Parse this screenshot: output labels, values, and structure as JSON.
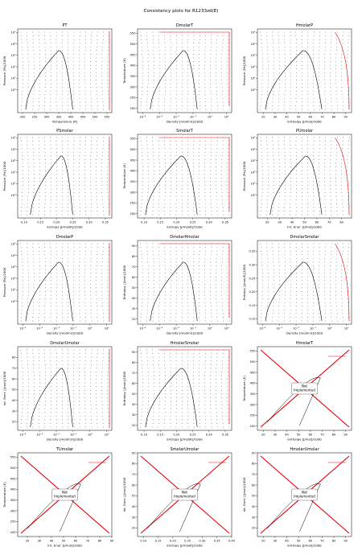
{
  "figure": {
    "title": "Consistency plots for R1233zd(E)"
  },
  "colors": {
    "grid_points": "#000000",
    "saturation_curve": "#000000",
    "boundary_line": "#e8000b",
    "frame": "#000000"
  },
  "chart_data": [
    {
      "id": "PT",
      "type": "scatter",
      "title": "PT",
      "xlabel": "Temperature [K]",
      "ylabel": "Pressure [Pa]/1000",
      "xlim": [
        180,
        570
      ],
      "ylim": [
        0.01,
        200000
      ],
      "xscale": "linear",
      "yscale": "log",
      "xticks": [
        {
          "v": 200,
          "l": "200"
        },
        {
          "v": 250,
          "l": "250"
        },
        {
          "v": 300,
          "l": "300"
        },
        {
          "v": 350,
          "l": "350"
        },
        {
          "v": 400,
          "l": "400"
        },
        {
          "v": 450,
          "l": "450"
        },
        {
          "v": 500,
          "l": "500"
        },
        {
          "v": 550,
          "l": "550"
        }
      ],
      "yticks": [
        {
          "v": 1,
          "l": "10⁰"
        },
        {
          "v": 10,
          "l": "10¹"
        },
        {
          "v": 100,
          "l": "10²"
        },
        {
          "v": 1000,
          "l": "10³"
        },
        {
          "v": 10000,
          "l": "10⁴"
        },
        {
          "v": 100000,
          "l": "10⁵"
        }
      ],
      "implemented": true
    },
    {
      "id": "DmolarT",
      "type": "scatter",
      "title": "DmolarT",
      "xlabel": "Density [mol/m3]/1000",
      "ylabel": "Temperature [K]",
      "xlim": [
        5e-05,
        20
      ],
      "ylim": [
        180,
        570
      ],
      "xscale": "log",
      "yscale": "linear",
      "xticks": [
        {
          "v": 0.0001,
          "l": "10⁻⁴"
        },
        {
          "v": 0.001,
          "l": "10⁻³"
        },
        {
          "v": 0.01,
          "l": "10⁻²"
        },
        {
          "v": 0.1,
          "l": "10⁻¹"
        },
        {
          "v": 1,
          "l": "10⁰"
        },
        {
          "v": 10,
          "l": "10¹"
        }
      ],
      "yticks": [
        {
          "v": 200,
          "l": "200"
        },
        {
          "v": 250,
          "l": "250"
        },
        {
          "v": 300,
          "l": "300"
        },
        {
          "v": 350,
          "l": "350"
        },
        {
          "v": 400,
          "l": "400"
        },
        {
          "v": 450,
          "l": "450"
        },
        {
          "v": 500,
          "l": "500"
        },
        {
          "v": 550,
          "l": "550"
        }
      ],
      "implemented": true
    },
    {
      "id": "HmolarP",
      "type": "scatter",
      "title": "HmolarP",
      "xlabel": "Enthalpy [J/mol]/1000",
      "ylabel": "Pressure [Pa]/1000",
      "xlim": [
        15,
        95
      ],
      "ylim": [
        0.01,
        200000
      ],
      "xscale": "linear",
      "yscale": "log",
      "xticks": [
        {
          "v": 20,
          "l": "20"
        },
        {
          "v": 30,
          "l": "30"
        },
        {
          "v": 40,
          "l": "40"
        },
        {
          "v": 50,
          "l": "50"
        },
        {
          "v": 60,
          "l": "60"
        },
        {
          "v": 70,
          "l": "70"
        },
        {
          "v": 80,
          "l": "80"
        },
        {
          "v": 90,
          "l": "90"
        }
      ],
      "yticks": [
        {
          "v": 1,
          "l": "10⁰"
        },
        {
          "v": 10,
          "l": "10¹"
        },
        {
          "v": 100,
          "l": "10²"
        },
        {
          "v": 1000,
          "l": "10³"
        },
        {
          "v": 10000,
          "l": "10⁴"
        },
        {
          "v": 100000,
          "l": "10⁵"
        }
      ],
      "implemented": true
    },
    {
      "id": "PSmolar",
      "type": "scatter",
      "title": "PSmolar",
      "xlabel": "Entropy [J/mol/K]/1000",
      "ylabel": "Pressure [Pa]/1000",
      "xlim": [
        0.08,
        0.37
      ],
      "ylim": [
        0.01,
        200000
      ],
      "xscale": "linear",
      "yscale": "log",
      "xticks": [
        {
          "v": 0.1,
          "l": "0.10"
        },
        {
          "v": 0.15,
          "l": "0.15"
        },
        {
          "v": 0.2,
          "l": "0.20"
        },
        {
          "v": 0.25,
          "l": "0.25"
        },
        {
          "v": 0.3,
          "l": "0.30"
        },
        {
          "v": 0.35,
          "l": "0.35"
        }
      ],
      "yticks": [
        {
          "v": 1,
          "l": "10⁰"
        },
        {
          "v": 10,
          "l": "10¹"
        },
        {
          "v": 100,
          "l": "10²"
        },
        {
          "v": 1000,
          "l": "10³"
        },
        {
          "v": 10000,
          "l": "10⁴"
        },
        {
          "v": 100000,
          "l": "10⁵"
        }
      ],
      "implemented": true
    },
    {
      "id": "SmolarT",
      "type": "scatter",
      "title": "SmolarT",
      "xlabel": "Entropy [J/mol/K]/1000",
      "ylabel": "Temperature [K]",
      "xlim": [
        0.08,
        0.37
      ],
      "ylim": [
        180,
        570
      ],
      "xscale": "linear",
      "yscale": "linear",
      "xticks": [
        {
          "v": 0.1,
          "l": "0.10"
        },
        {
          "v": 0.15,
          "l": "0.15"
        },
        {
          "v": 0.2,
          "l": "0.20"
        },
        {
          "v": 0.25,
          "l": "0.25"
        },
        {
          "v": 0.3,
          "l": "0.30"
        },
        {
          "v": 0.35,
          "l": "0.35"
        }
      ],
      "yticks": [
        {
          "v": 200,
          "l": "200"
        },
        {
          "v": 250,
          "l": "250"
        },
        {
          "v": 300,
          "l": "300"
        },
        {
          "v": 350,
          "l": "350"
        },
        {
          "v": 400,
          "l": "400"
        },
        {
          "v": 450,
          "l": "450"
        },
        {
          "v": 500,
          "l": "500"
        },
        {
          "v": 550,
          "l": "550"
        }
      ],
      "implemented": true
    },
    {
      "id": "PUmolar",
      "type": "scatter",
      "title": "PUmolar",
      "xlabel": "Int. Ener. [J/mol]/1000",
      "ylabel": "Pressure [Pa]/1000",
      "xlim": [
        12,
        88
      ],
      "ylim": [
        0.01,
        200000
      ],
      "xscale": "linear",
      "yscale": "log",
      "xticks": [
        {
          "v": 20,
          "l": "20"
        },
        {
          "v": 30,
          "l": "30"
        },
        {
          "v": 40,
          "l": "40"
        },
        {
          "v": 50,
          "l": "50"
        },
        {
          "v": 60,
          "l": "60"
        },
        {
          "v": 70,
          "l": "70"
        },
        {
          "v": 80,
          "l": "80"
        }
      ],
      "yticks": [
        {
          "v": 1,
          "l": "10⁰"
        },
        {
          "v": 10,
          "l": "10¹"
        },
        {
          "v": 100,
          "l": "10²"
        },
        {
          "v": 1000,
          "l": "10³"
        },
        {
          "v": 10000,
          "l": "10⁴"
        },
        {
          "v": 100000,
          "l": "10⁵"
        }
      ],
      "implemented": true
    },
    {
      "id": "DmolarP",
      "type": "scatter",
      "title": "DmolarP",
      "xlabel": "Density [mol/m3]/1000",
      "ylabel": "Pressure [Pa]/1000",
      "xlim": [
        5e-05,
        20
      ],
      "ylim": [
        0.01,
        200000
      ],
      "xscale": "log",
      "yscale": "log",
      "xticks": [
        {
          "v": 0.0001,
          "l": "10⁻⁴"
        },
        {
          "v": 0.001,
          "l": "10⁻³"
        },
        {
          "v": 0.01,
          "l": "10⁻²"
        },
        {
          "v": 0.1,
          "l": "10⁻¹"
        },
        {
          "v": 1,
          "l": "10⁰"
        },
        {
          "v": 10,
          "l": "10¹"
        }
      ],
      "yticks": [
        {
          "v": 1,
          "l": "10⁰"
        },
        {
          "v": 10,
          "l": "10¹"
        },
        {
          "v": 100,
          "l": "10²"
        },
        {
          "v": 1000,
          "l": "10³"
        },
        {
          "v": 10000,
          "l": "10⁴"
        },
        {
          "v": 100000,
          "l": "10⁵"
        }
      ],
      "implemented": true
    },
    {
      "id": "DmolarHmolar",
      "type": "scatter",
      "title": "DmolarHmolar",
      "xlabel": "Density [mol/m3]/1000",
      "ylabel": "Enthalpy [J/mol]/1000",
      "xlim": [
        5e-05,
        20
      ],
      "ylim": [
        15,
        95
      ],
      "xscale": "log",
      "yscale": "linear",
      "xticks": [
        {
          "v": 0.0001,
          "l": "10⁻⁴"
        },
        {
          "v": 0.001,
          "l": "10⁻³"
        },
        {
          "v": 0.01,
          "l": "10⁻²"
        },
        {
          "v": 0.1,
          "l": "10⁻¹"
        },
        {
          "v": 1,
          "l": "10⁰"
        },
        {
          "v": 10,
          "l": "10¹"
        }
      ],
      "yticks": [
        {
          "v": 20,
          "l": "20"
        },
        {
          "v": 30,
          "l": "30"
        },
        {
          "v": 40,
          "l": "40"
        },
        {
          "v": 50,
          "l": "50"
        },
        {
          "v": 60,
          "l": "60"
        },
        {
          "v": 70,
          "l": "70"
        },
        {
          "v": 80,
          "l": "80"
        },
        {
          "v": 90,
          "l": "90"
        }
      ],
      "implemented": true
    },
    {
      "id": "DmolarSmolar",
      "type": "scatter",
      "title": "DmolarSmolar",
      "xlabel": "Density [mol/m3]/1000",
      "ylabel": "Entropy [J/mol/K]/1000",
      "xlim": [
        5e-05,
        20
      ],
      "ylim": [
        0.08,
        0.39
      ],
      "xscale": "log",
      "yscale": "linear",
      "xticks": [
        {
          "v": 0.0001,
          "l": "10⁻⁴"
        },
        {
          "v": 0.001,
          "l": "10⁻³"
        },
        {
          "v": 0.01,
          "l": "10⁻²"
        },
        {
          "v": 0.1,
          "l": "10⁻¹"
        },
        {
          "v": 1,
          "l": "10⁰"
        },
        {
          "v": 10,
          "l": "10¹"
        }
      ],
      "yticks": [
        {
          "v": 0.1,
          "l": "0.10"
        },
        {
          "v": 0.15,
          "l": "0.15"
        },
        {
          "v": 0.2,
          "l": "0.20"
        },
        {
          "v": 0.25,
          "l": "0.25"
        },
        {
          "v": 0.3,
          "l": "0.30"
        },
        {
          "v": 0.35,
          "l": "0.35"
        }
      ],
      "implemented": true
    },
    {
      "id": "DmolarUmolar",
      "type": "scatter",
      "title": "DmolarUmolar",
      "xlabel": "Density [mol/m3]/1000",
      "ylabel": "Int. Ener. [J/mol]/1000",
      "xlim": [
        5e-05,
        20
      ],
      "ylim": [
        12,
        90
      ],
      "xscale": "log",
      "yscale": "linear",
      "xticks": [
        {
          "v": 0.0001,
          "l": "10⁻⁴"
        },
        {
          "v": 0.001,
          "l": "10⁻³"
        },
        {
          "v": 0.01,
          "l": "10⁻²"
        },
        {
          "v": 0.1,
          "l": "10⁻¹"
        },
        {
          "v": 1,
          "l": "10⁰"
        },
        {
          "v": 10,
          "l": "10¹"
        }
      ],
      "yticks": [
        {
          "v": 20,
          "l": "20"
        },
        {
          "v": 30,
          "l": "30"
        },
        {
          "v": 40,
          "l": "40"
        },
        {
          "v": 50,
          "l": "50"
        },
        {
          "v": 60,
          "l": "60"
        },
        {
          "v": 70,
          "l": "70"
        },
        {
          "v": 80,
          "l": "80"
        }
      ],
      "implemented": true
    },
    {
      "id": "HmolarSmolar",
      "type": "scatter",
      "title": "HmolarSmolar",
      "xlabel": "Entropy [J/mol/K]/1000",
      "ylabel": "Enthalpy [J/mol]/1000",
      "xlim": [
        0.08,
        0.37
      ],
      "ylim": [
        15,
        95
      ],
      "xscale": "linear",
      "yscale": "linear",
      "xticks": [
        {
          "v": 0.1,
          "l": "0.10"
        },
        {
          "v": 0.15,
          "l": "0.15"
        },
        {
          "v": 0.2,
          "l": "0.20"
        },
        {
          "v": 0.25,
          "l": "0.25"
        },
        {
          "v": 0.3,
          "l": "0.30"
        },
        {
          "v": 0.35,
          "l": "0.35"
        }
      ],
      "yticks": [
        {
          "v": 20,
          "l": "20"
        },
        {
          "v": 30,
          "l": "30"
        },
        {
          "v": 40,
          "l": "40"
        },
        {
          "v": 50,
          "l": "50"
        },
        {
          "v": 60,
          "l": "60"
        },
        {
          "v": 70,
          "l": "70"
        },
        {
          "v": 80,
          "l": "80"
        },
        {
          "v": 90,
          "l": "90"
        }
      ],
      "implemented": true
    },
    {
      "id": "HmolarT",
      "type": "scatter",
      "title": "HmolarT",
      "xlabel": "Enthalpy [J/mol]/1000",
      "ylabel": "Temperature [K]",
      "xlim": [
        15,
        95
      ],
      "ylim": [
        180,
        570
      ],
      "xscale": "linear",
      "yscale": "linear",
      "xticks": [
        {
          "v": 20,
          "l": "20"
        },
        {
          "v": 30,
          "l": "30"
        },
        {
          "v": 40,
          "l": "40"
        },
        {
          "v": 50,
          "l": "50"
        },
        {
          "v": 60,
          "l": "60"
        },
        {
          "v": 70,
          "l": "70"
        },
        {
          "v": 80,
          "l": "80"
        },
        {
          "v": 90,
          "l": "90"
        }
      ],
      "yticks": [
        {
          "v": 200,
          "l": "200"
        },
        {
          "v": 250,
          "l": "250"
        },
        {
          "v": 300,
          "l": "300"
        },
        {
          "v": 350,
          "l": "350"
        },
        {
          "v": 400,
          "l": "400"
        },
        {
          "v": 450,
          "l": "450"
        },
        {
          "v": 500,
          "l": "500"
        },
        {
          "v": 550,
          "l": "550"
        }
      ],
      "implemented": false,
      "badge": "Not\nImplemented"
    },
    {
      "id": "TUmolar",
      "type": "scatter",
      "title": "TUmolar",
      "xlabel": "Int. Ener. [J/mol]/1000",
      "ylabel": "Temperature [K]",
      "xlim": [
        12,
        90
      ],
      "ylim": [
        180,
        570
      ],
      "xscale": "linear",
      "yscale": "linear",
      "xticks": [
        {
          "v": 20,
          "l": "20"
        },
        {
          "v": 30,
          "l": "30"
        },
        {
          "v": 40,
          "l": "40"
        },
        {
          "v": 50,
          "l": "50"
        },
        {
          "v": 60,
          "l": "60"
        },
        {
          "v": 70,
          "l": "70"
        },
        {
          "v": 80,
          "l": "80"
        },
        {
          "v": 90,
          "l": "90"
        }
      ],
      "yticks": [
        {
          "v": 200,
          "l": "200"
        },
        {
          "v": 250,
          "l": "250"
        },
        {
          "v": 300,
          "l": "300"
        },
        {
          "v": 350,
          "l": "350"
        },
        {
          "v": 400,
          "l": "400"
        },
        {
          "v": 450,
          "l": "450"
        },
        {
          "v": 500,
          "l": "500"
        },
        {
          "v": 550,
          "l": "550"
        }
      ],
      "implemented": false,
      "badge": "Not\nImplemented"
    },
    {
      "id": "SmolarUmolar",
      "type": "scatter",
      "title": "SmolarUmolar",
      "xlabel": "Entropy [J/mol/K]/1000",
      "ylabel": "Int. Ener. [J/mol]/1000",
      "xlim": [
        0.08,
        0.4
      ],
      "ylim": [
        12,
        90
      ],
      "xscale": "linear",
      "yscale": "linear",
      "xticks": [
        {
          "v": 0.1,
          "l": "0.10"
        },
        {
          "v": 0.15,
          "l": "0.15"
        },
        {
          "v": 0.2,
          "l": "0.20"
        },
        {
          "v": 0.25,
          "l": "0.25"
        },
        {
          "v": 0.3,
          "l": "0.30"
        },
        {
          "v": 0.35,
          "l": "0.35"
        },
        {
          "v": 0.4,
          "l": "0.40"
        }
      ],
      "yticks": [
        {
          "v": 20,
          "l": "20"
        },
        {
          "v": 30,
          "l": "30"
        },
        {
          "v": 40,
          "l": "40"
        },
        {
          "v": 50,
          "l": "50"
        },
        {
          "v": 60,
          "l": "60"
        },
        {
          "v": 70,
          "l": "70"
        },
        {
          "v": 80,
          "l": "80"
        },
        {
          "v": 90,
          "l": "90"
        }
      ],
      "implemented": false,
      "badge": "Not\nImplemented"
    },
    {
      "id": "HmolarUmolar",
      "type": "scatter",
      "title": "HmolarUmolar",
      "xlabel": "Enthalpy [J/mol]/1000",
      "ylabel": "Int. Ener. [J/mol]/1000",
      "xlim": [
        15,
        95
      ],
      "ylim": [
        12,
        90
      ],
      "xscale": "linear",
      "yscale": "linear",
      "xticks": [
        {
          "v": 20,
          "l": "20"
        },
        {
          "v": 30,
          "l": "30"
        },
        {
          "v": 40,
          "l": "40"
        },
        {
          "v": 50,
          "l": "50"
        },
        {
          "v": 60,
          "l": "60"
        },
        {
          "v": 70,
          "l": "70"
        },
        {
          "v": 80,
          "l": "80"
        },
        {
          "v": 90,
          "l": "90"
        }
      ],
      "yticks": [
        {
          "v": 20,
          "l": "20"
        },
        {
          "v": 30,
          "l": "30"
        },
        {
          "v": 40,
          "l": "40"
        },
        {
          "v": 50,
          "l": "50"
        },
        {
          "v": 60,
          "l": "60"
        },
        {
          "v": 70,
          "l": "70"
        },
        {
          "v": 80,
          "l": "80"
        },
        {
          "v": 90,
          "l": "90"
        }
      ],
      "implemented": false,
      "badge": "Not\nImplemented"
    }
  ]
}
